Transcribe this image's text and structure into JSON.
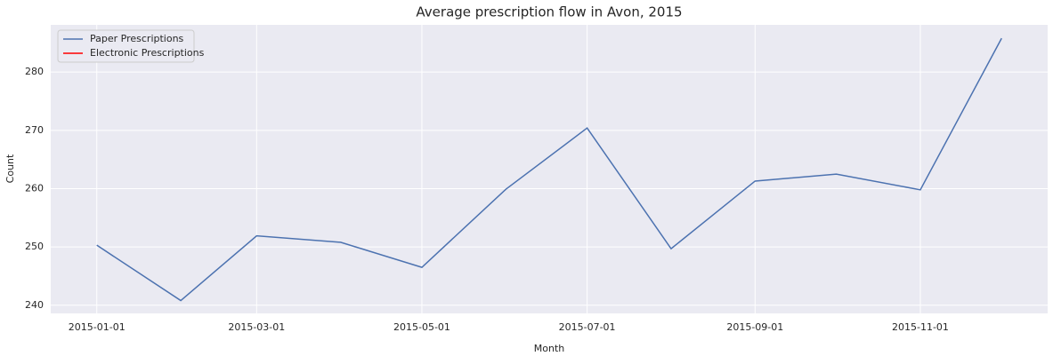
{
  "chart_data": {
    "type": "line",
    "title": "Average prescription flow in Avon, 2015",
    "x_label": "Month",
    "y_label": "Count",
    "x": [
      "2015-01-01",
      "2015-02-01",
      "2015-03-01",
      "2015-04-01",
      "2015-05-01",
      "2015-06-01",
      "2015-07-01",
      "2015-08-01",
      "2015-09-01",
      "2015-10-01",
      "2015-11-01",
      "2015-12-01"
    ],
    "series": [
      {
        "name": "Paper Prescriptions",
        "color": "#4c72b0",
        "values": [
          250.3,
          240.8,
          251.9,
          250.8,
          246.5,
          259.9,
          270.4,
          249.7,
          261.3,
          262.5,
          259.8,
          285.8
        ]
      },
      {
        "name": "Electronic Prescriptions",
        "color": "#ff0000",
        "values": [
          null,
          null,
          null,
          null,
          null,
          null,
          null,
          null,
          null,
          null,
          null,
          null
        ]
      }
    ],
    "xlim": [
      "2014-12-15",
      "2015-12-18"
    ],
    "xticks": [
      "2015-01-01",
      "2015-03-01",
      "2015-05-01",
      "2015-07-01",
      "2015-09-01",
      "2015-11-01"
    ],
    "ylim": [
      238.6,
      288.1
    ],
    "yticks": [
      240,
      250,
      260,
      270,
      280
    ],
    "grid": true,
    "legend": "upper-left"
  }
}
